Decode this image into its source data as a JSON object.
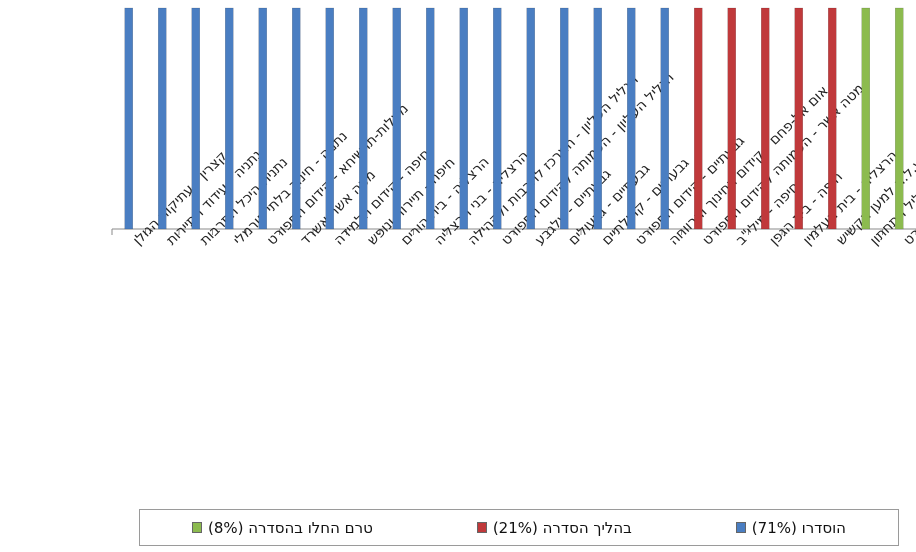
{
  "chart_data": {
    "type": "bar",
    "title": "",
    "xlabel": "",
    "ylabel": "",
    "grid": false,
    "legend_position": "bottom",
    "categories": [
      "קצרין - עתיקות הגולן",
      "נתניה - עידוד התיירות",
      "נתניה-היכל התרבות",
      "נתניה - חינוך בלתי פורמלי",
      "מעלות-תרשיחא - קידום הספורט",
      "מטה אשר-אשרד",
      "חיפה - קידום הלמידה",
      "חיפה - תיירות ונופש",
      "הרצליה - בית הורים",
      "הרצליה - בני הרצליה",
      "הגליל העליון - המרכז לתרבות ולקהילה",
      "הגליל העליון - העמותה לקידום הספורט",
      "גבעתיים - עלגבע",
      "גבעתיים - גבעולים",
      "גבעתיים - קהילתיים",
      "גבעתיים - קידום הספורט",
      "אום אל-פחם - קידום החינוך והרווחה",
      "מטה אשר - העמותה לקידום הספורט",
      "חיפה - מילי\"ב",
      "חיפה - בית הגפן",
      "הרצליה - בית העלמין",
      "הרצליה - ע.ל.ה למען הקשיש",
      "הגליל התחתון - למען הגליל התחתון",
      "הגליל התחתון - עמותה לקידום הספורט"
    ],
    "series": [
      {
        "name": "הוסדרו (71%)",
        "color": "#4a7ec2",
        "values": [
          1,
          1,
          1,
          1,
          1,
          1,
          1,
          1,
          1,
          1,
          1,
          1,
          1,
          1,
          1,
          1,
          1,
          0,
          0,
          0,
          0,
          0,
          0,
          0
        ]
      },
      {
        "name": "בהליך הסדרה (21%)",
        "color": "#c0393b",
        "values": [
          0,
          0,
          0,
          0,
          0,
          0,
          0,
          0,
          0,
          0,
          0,
          0,
          0,
          0,
          0,
          0,
          0,
          1,
          1,
          1,
          1,
          1,
          0,
          0
        ]
      },
      {
        "name": "טרם החלו בהסדרה (8%)",
        "color": "#8cbb4f",
        "values": [
          0,
          0,
          0,
          0,
          0,
          0,
          0,
          0,
          0,
          0,
          0,
          0,
          0,
          0,
          0,
          0,
          0,
          0,
          0,
          0,
          0,
          0,
          1,
          1
        ]
      }
    ],
    "ylim": [
      0,
      1
    ]
  }
}
